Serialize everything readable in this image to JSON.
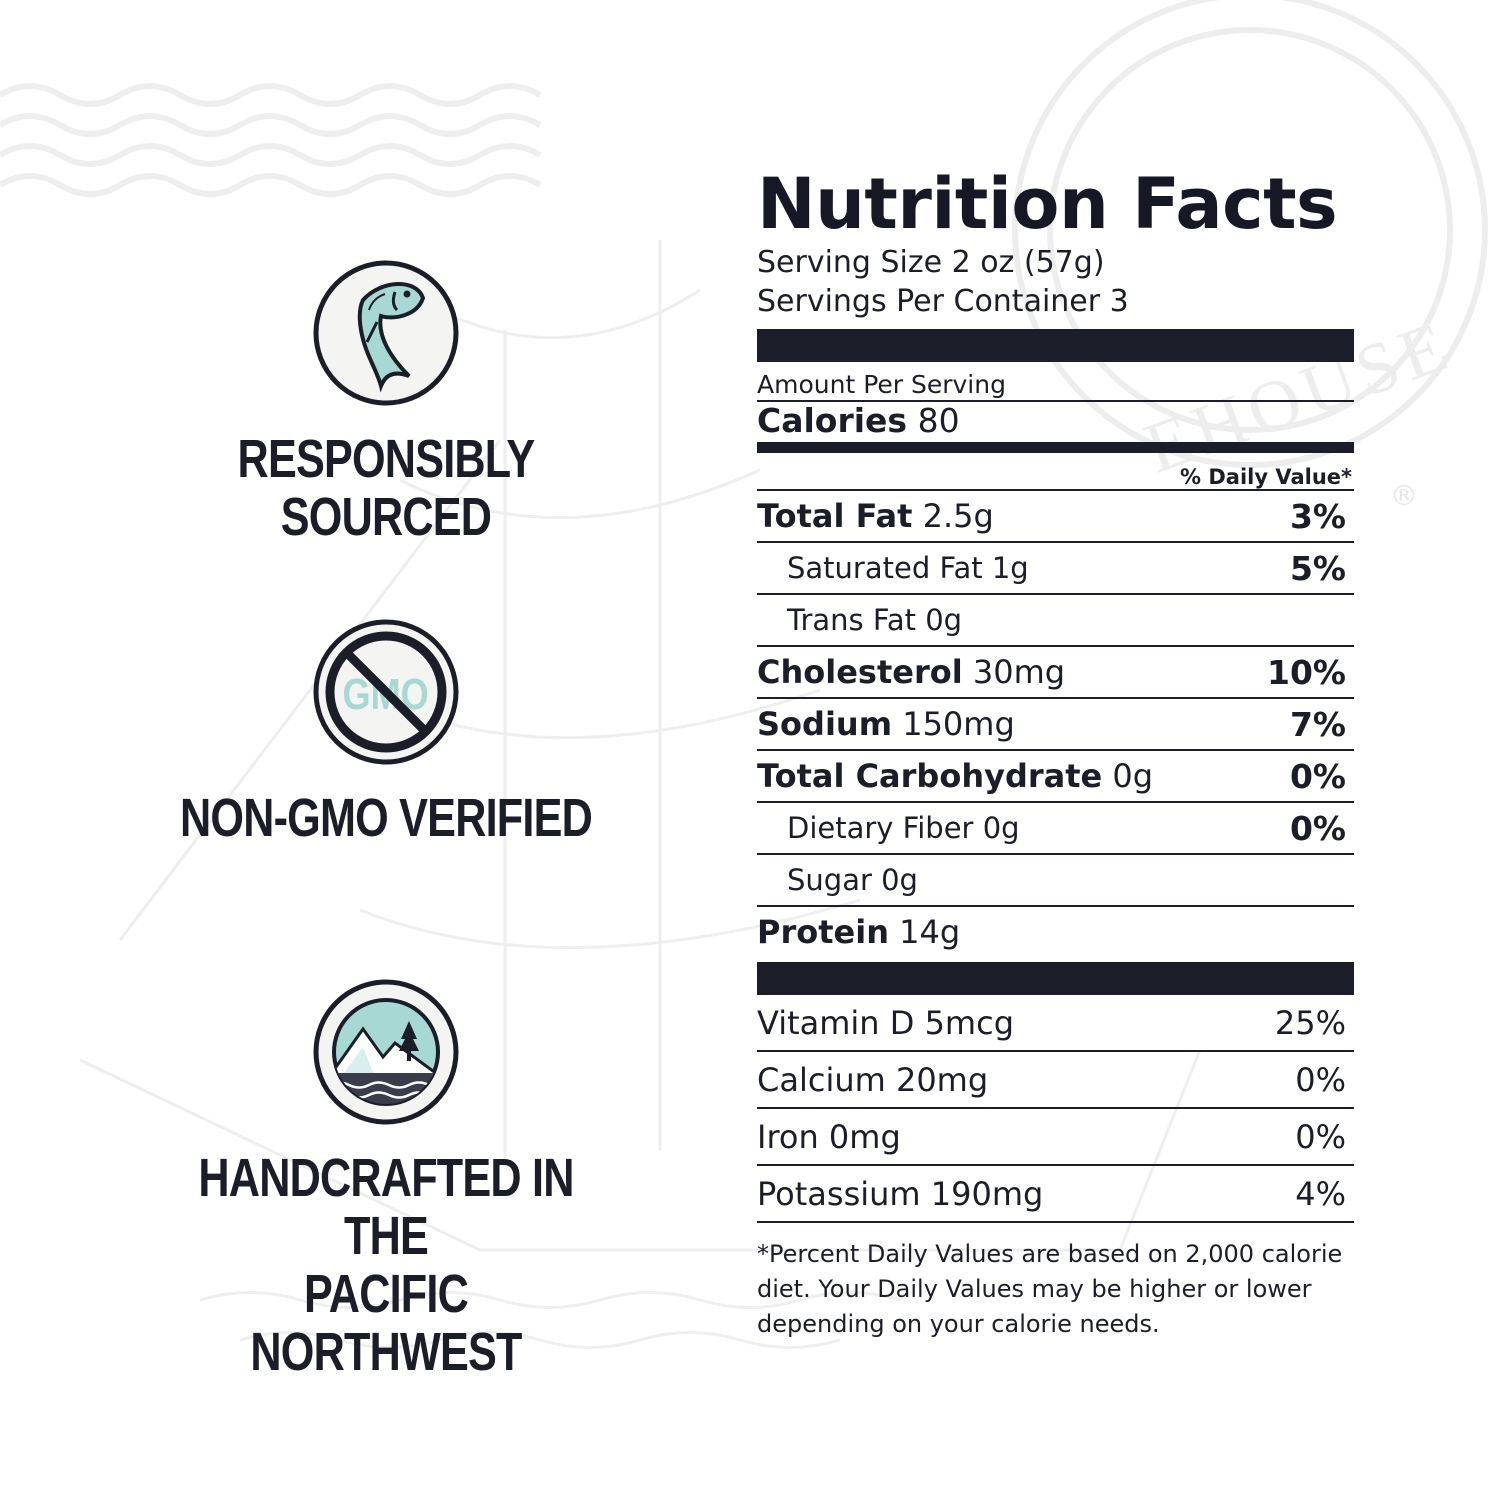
{
  "badges": [
    {
      "label": "RESPONSIBLY SOURCED",
      "icon": "fish-icon"
    },
    {
      "label": "NON-GMO VERIFIED",
      "icon": "no-gmo-icon",
      "icon_text": "GMO"
    },
    {
      "label": "HANDCRAFTED IN THE\nPACIFIC NORTHWEST",
      "icon": "mountains-icon"
    }
  ],
  "watermark": {
    "text": "EHOUSE",
    "registered": "®"
  },
  "nutrition": {
    "title": "Nutrition Facts",
    "serving_size": "Serving Size 2 oz (57g)",
    "servings_per_container": "Servings Per Container 3",
    "amount_per_serving": "Amount Per Serving",
    "calories_label": "Calories",
    "calories_value": "80",
    "daily_value_header": "% Daily Value*",
    "rows": [
      {
        "label": "Total Fat",
        "amount": "2.5g",
        "dv": "3%"
      },
      {
        "label": "Saturated Fat 1g",
        "amount": "",
        "dv": "5%"
      },
      {
        "label": "Trans Fat 0g",
        "amount": "",
        "dv": ""
      },
      {
        "label": "Cholesterol",
        "amount": "30mg",
        "dv": "10%"
      },
      {
        "label": "Sodium",
        "amount": "150mg",
        "dv": "7%"
      },
      {
        "label": "Total Carbohydrate",
        "amount": "0g",
        "dv": "0%"
      },
      {
        "label": "Dietary Fiber 0g",
        "amount": "",
        "dv": "0%"
      },
      {
        "label": "Sugar 0g",
        "amount": "",
        "dv": ""
      },
      {
        "label": "Protein",
        "amount": "14g",
        "dv": ""
      }
    ],
    "vitamins": [
      {
        "label": "Vitamin D 5mcg",
        "dv": "25%"
      },
      {
        "label": "Calcium 20mg",
        "dv": "0%"
      },
      {
        "label": "Iron 0mg",
        "dv": "0%"
      },
      {
        "label": "Potassium 190mg",
        "dv": "4%"
      }
    ],
    "footnote": "*Percent Daily Values are based on 2,000 calorie diet. Your Daily Values may be higher or lower depending on your calorie needs."
  },
  "colors": {
    "ink": "#1b1e28",
    "teal": "#a8d8d4",
    "watermark": "#ececec",
    "badge_ring": "#1b1e28",
    "badge_fill": "#f4f4f2"
  }
}
